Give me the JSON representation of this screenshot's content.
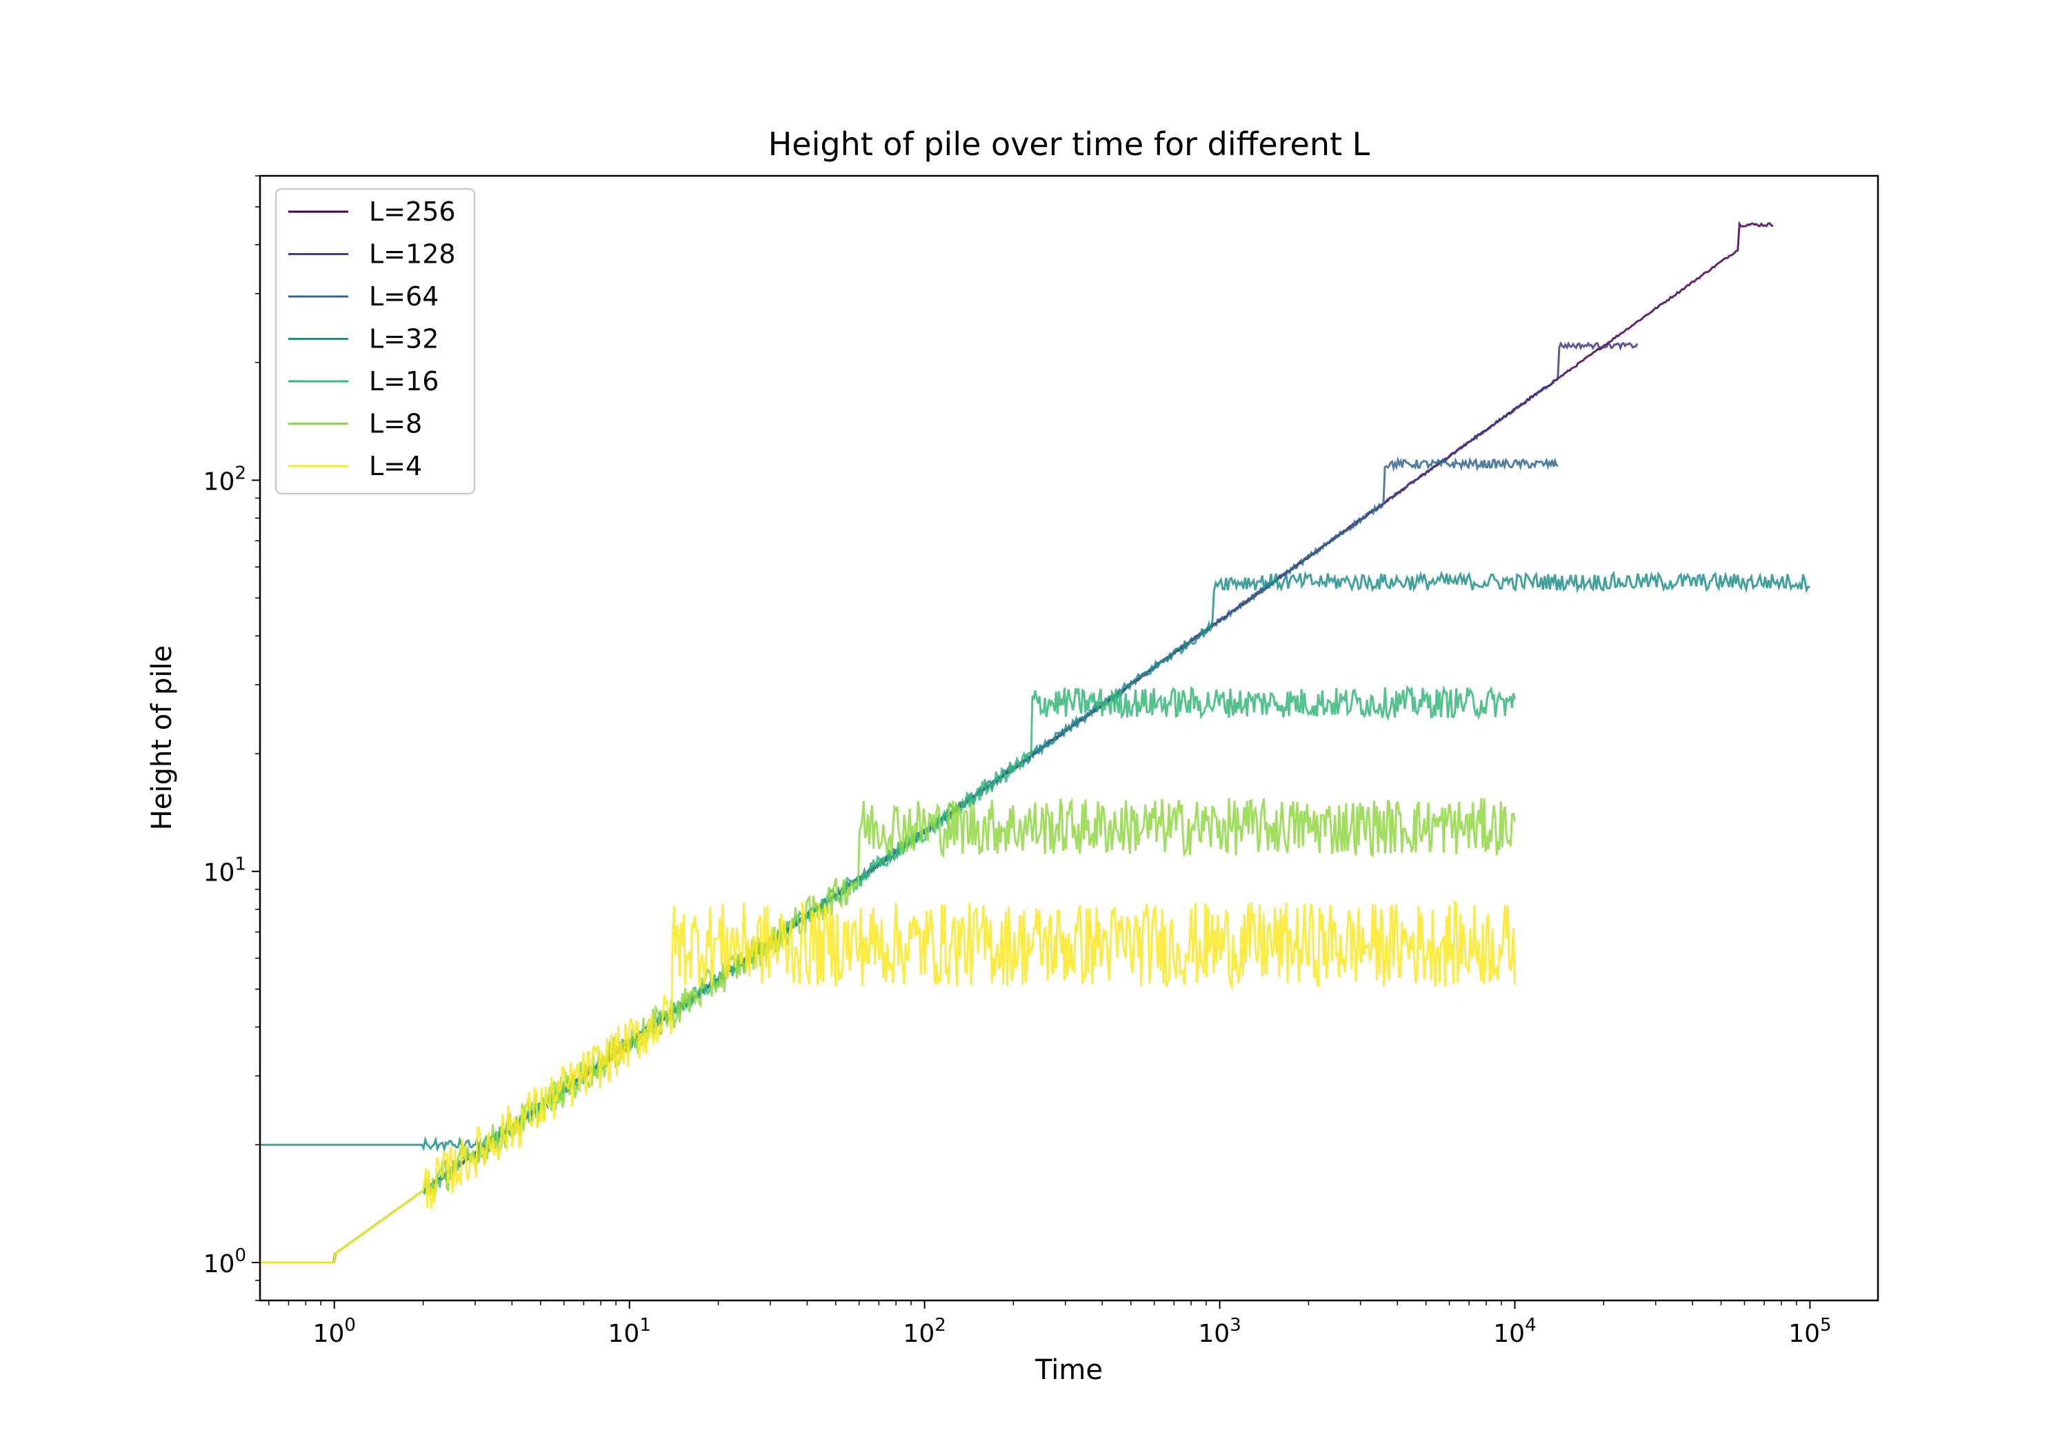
{
  "chart_data": {
    "type": "line",
    "title": "Height of pile over time for different L",
    "xlabel": "Time",
    "ylabel": "Height of pile",
    "xscale": "log",
    "yscale": "log",
    "xlim": [
      0.56,
      170000
    ],
    "ylim": [
      0.8,
      600
    ],
    "x_ticks": [
      {
        "base": "10",
        "exp": "0",
        "value": 1
      },
      {
        "base": "10",
        "exp": "1",
        "value": 10
      },
      {
        "base": "10",
        "exp": "2",
        "value": 100
      },
      {
        "base": "10",
        "exp": "3",
        "value": 1000
      },
      {
        "base": "10",
        "exp": "4",
        "value": 10000
      },
      {
        "base": "10",
        "exp": "5",
        "value": 100000
      }
    ],
    "y_ticks": [
      {
        "base": "10",
        "exp": "0",
        "value": 1
      },
      {
        "base": "10",
        "exp": "1",
        "value": 10
      },
      {
        "base": "10",
        "exp": "2",
        "value": 100
      }
    ],
    "grid": false,
    "legend_position": "top-left",
    "series": [
      {
        "name": "L=256",
        "color": "#440154",
        "t_end": 75000,
        "plateau": 450,
        "t_sat": 57000,
        "noise": 0.01,
        "offset": 0.0,
        "start": 1
      },
      {
        "name": "L=128",
        "color": "#443983",
        "t_end": 26000,
        "plateau": 221,
        "t_sat": 14000,
        "noise": 0.015,
        "offset": 0.0,
        "start": 1
      },
      {
        "name": "L=64",
        "color": "#31688e",
        "t_end": 14000,
        "plateau": 110,
        "t_sat": 3600,
        "noise": 0.025,
        "offset": 0.0,
        "start": 1
      },
      {
        "name": "L=32",
        "color": "#21918c",
        "t_end": 100000,
        "plateau": 55,
        "t_sat": 950,
        "noise": 0.05,
        "offset": 0.0,
        "start": 2
      },
      {
        "name": "L=16",
        "color": "#35b779",
        "t_end": 10000,
        "plateau": 27,
        "t_sat": 230,
        "noise": 0.09,
        "offset": 0.0,
        "start": 1
      },
      {
        "name": "L=8",
        "color": "#90d743",
        "t_end": 10000,
        "plateau": 13,
        "t_sat": 60,
        "noise": 0.17,
        "offset": 0.0,
        "start": 1
      },
      {
        "name": "L=4",
        "color": "#fde725",
        "t_end": 10000,
        "plateau": 6.5,
        "t_sat": 14,
        "noise": 0.25,
        "offset": 0.0,
        "start": 1
      }
    ]
  }
}
